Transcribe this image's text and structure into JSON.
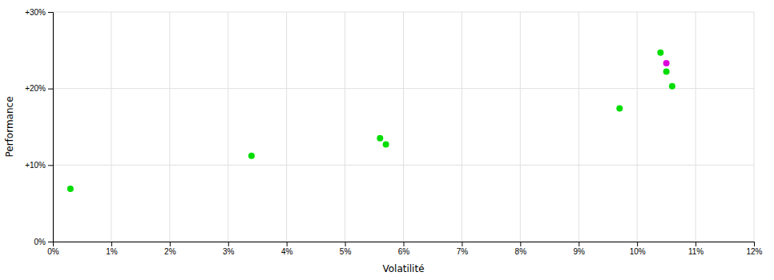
{
  "chart_data": {
    "type": "scatter",
    "xlabel": "Volatilité",
    "ylabel": "Performance",
    "xlim": [
      0,
      0.12
    ],
    "ylim": [
      0,
      0.3
    ],
    "xticks": [
      {
        "value": 0,
        "label": "0%"
      },
      {
        "value": 0.01,
        "label": "1%"
      },
      {
        "value": 0.02,
        "label": "2%"
      },
      {
        "value": 0.03,
        "label": "3%"
      },
      {
        "value": 0.04,
        "label": "4%"
      },
      {
        "value": 0.05,
        "label": "5%"
      },
      {
        "value": 0.06,
        "label": "6%"
      },
      {
        "value": 0.07,
        "label": "7%"
      },
      {
        "value": 0.08,
        "label": "8%"
      },
      {
        "value": 0.09,
        "label": "9%"
      },
      {
        "value": 0.1,
        "label": "10%"
      },
      {
        "value": 0.11,
        "label": "11%"
      },
      {
        "value": 0.12,
        "label": "12%"
      }
    ],
    "yticks": [
      {
        "value": 0,
        "label": "0%"
      },
      {
        "value": 0.1,
        "label": "+10%"
      },
      {
        "value": 0.2,
        "label": "+20%"
      },
      {
        "value": 0.3,
        "label": "+30%"
      }
    ],
    "grid": true,
    "series": [
      {
        "color": "#00dd00",
        "x": [
          0.003,
          0.034,
          0.056,
          0.057,
          0.097,
          0.104,
          0.105,
          0.106
        ],
        "values": [
          0.069,
          0.112,
          0.135,
          0.127,
          0.174,
          0.247,
          0.222,
          0.203
        ]
      },
      {
        "color": "#dd00dd",
        "x": [
          0.105
        ],
        "values": [
          0.233
        ]
      }
    ]
  }
}
